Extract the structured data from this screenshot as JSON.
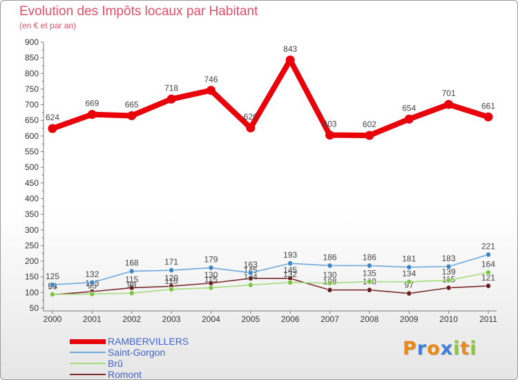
{
  "title": "Evolution des Impôts locaux par Habitant",
  "subtitle": "(en € et par an)",
  "brand": {
    "letters": [
      "P",
      "r",
      "o",
      "x",
      "i",
      "t",
      "i"
    ],
    "colors": [
      "#e8891a",
      "#3f7fd6",
      "#e8891a",
      "#3f7fd6",
      "#8cc63f",
      "#e8891a",
      "#8cc63f"
    ]
  },
  "chart_data": {
    "type": "line",
    "title": "Evolution des Impôts locaux par Habitant",
    "subtitle": "(en € et par an)",
    "xlabel": "",
    "ylabel": "",
    "categories": [
      "2000",
      "2001",
      "2002",
      "2003",
      "2004",
      "2005",
      "2006",
      "2007",
      "2008",
      "2009",
      "2010",
      "2011"
    ],
    "ylim": [
      50,
      900
    ],
    "yticks": [
      50,
      100,
      150,
      200,
      250,
      300,
      350,
      400,
      450,
      500,
      550,
      600,
      650,
      700,
      750,
      800,
      850,
      900
    ],
    "grid": false,
    "legend_position": "bottom-left",
    "series": [
      {
        "name": "RAMBERVILLERS",
        "color": "#e8000b",
        "marker": "#e8000b",
        "values": [
          624,
          669,
          665,
          718,
          746,
          626,
          843,
          603,
          602,
          654,
          701,
          661
        ],
        "labels": [
          "624",
          "669",
          "665",
          "718",
          "746",
          "626",
          "843",
          "603",
          "602",
          "654",
          "701",
          "661"
        ]
      },
      {
        "name": "Saint-Gorgon",
        "color": "#6fa8dc",
        "marker": "#3d85c6",
        "values": [
          125,
          132,
          168,
          171,
          179,
          163,
          193,
          186,
          186,
          181,
          183,
          221
        ],
        "labels": [
          "125",
          "132",
          "168",
          "171",
          "179",
          "163",
          "193",
          "186",
          "186",
          "181",
          "183",
          "221"
        ]
      },
      {
        "name": "Brû",
        "color": "#a3dc7a",
        "marker": "#7cc546",
        "values": [
          94,
          95,
          98,
          110,
          115,
          124,
          132,
          130,
          135,
          134,
          139,
          164
        ],
        "labels": [
          "94",
          "95",
          "98",
          "110",
          "115",
          "124",
          "132",
          "130",
          "135",
          "134",
          "139",
          "164"
        ]
      },
      {
        "name": "Romont",
        "color": "#7a2a2a",
        "marker": "#6b1f1f",
        "values": [
          93,
          103,
          115,
          120,
          130,
          145,
          145,
          108,
          108,
          97,
          115,
          121
        ],
        "labels": [
          "93",
          "103",
          "115",
          "120",
          "130",
          "145",
          "145",
          "108",
          "108",
          "97",
          "115",
          "121"
        ]
      }
    ]
  }
}
